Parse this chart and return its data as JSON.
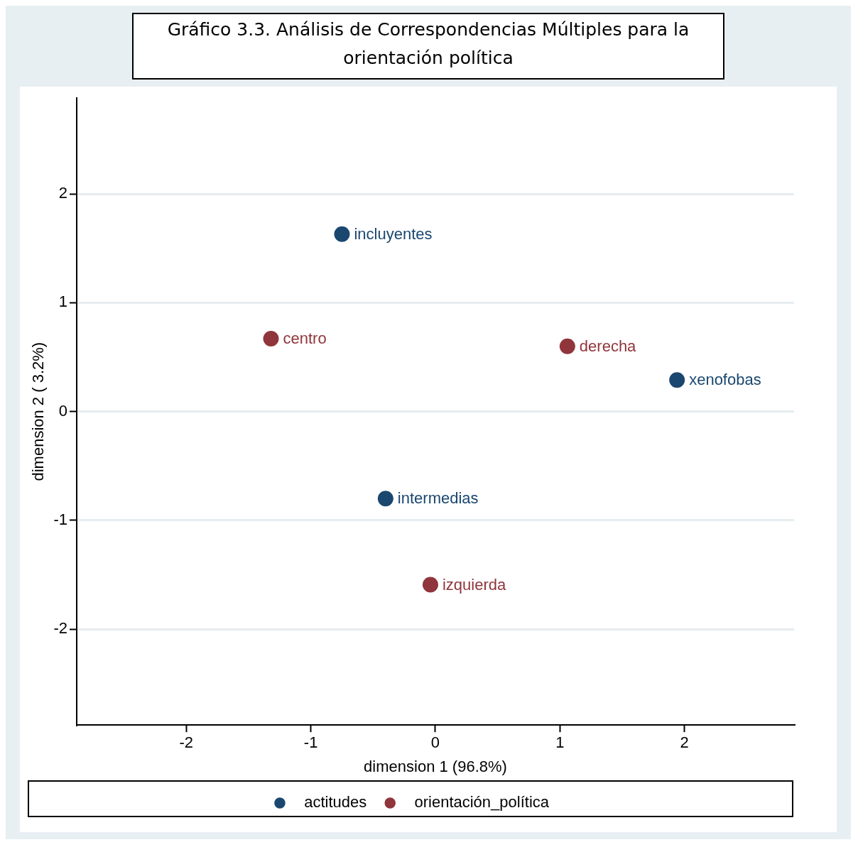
{
  "chart_data": {
    "type": "scatter",
    "title": "Gráfico 3.3. Análisis de Correspondencias Múltiples para la orientación política",
    "xlabel": "dimension 1 (96.8%)",
    "ylabel": "dimension 2 ( 3.2%)",
    "xlim": [
      -2.88,
      2.88
    ],
    "ylim": [
      -2.88,
      2.88
    ],
    "xticks": [
      -2,
      -1,
      0,
      1,
      2
    ],
    "yticks": [
      -2,
      -1,
      0,
      1,
      2
    ],
    "grid": "y",
    "legend": "bottom",
    "marker": "circle",
    "series": [
      {
        "name": "actitudes",
        "color": "#1a476f",
        "x": [
          -0.75,
          -0.4,
          1.94
        ],
        "values": [
          1.63,
          -0.8,
          0.29
        ]
      },
      {
        "name": "orientación_política",
        "color": "#90353b",
        "x": [
          -1.32,
          1.06,
          -0.04
        ],
        "values": [
          0.67,
          0.6,
          -1.59
        ]
      }
    ],
    "annotations": [
      {
        "text": "incluyentes",
        "x": -0.75,
        "y": 1.63
      },
      {
        "text": "intermedias",
        "x": -0.4,
        "y": -0.8
      },
      {
        "text": "xenofobas",
        "x": 1.94,
        "y": 0.29
      },
      {
        "text": "centro",
        "x": -1.32,
        "y": 0.67
      },
      {
        "text": "derecha",
        "x": 1.06,
        "y": 0.6
      },
      {
        "text": "izquierda",
        "x": -0.04,
        "y": -1.59
      }
    ]
  }
}
